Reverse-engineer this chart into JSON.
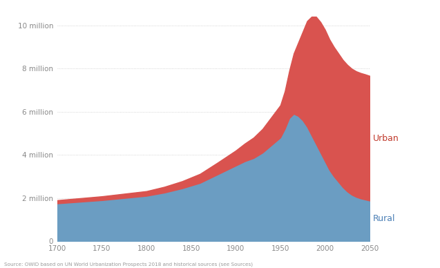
{
  "years": [
    1700,
    1750,
    1800,
    1820,
    1840,
    1860,
    1880,
    1900,
    1910,
    1920,
    1930,
    1940,
    1950,
    1955,
    1960,
    1965,
    1970,
    1975,
    1980,
    1985,
    1990,
    1995,
    2000,
    2005,
    2010,
    2015,
    2020,
    2025,
    2030,
    2035,
    2040,
    2045,
    2050
  ],
  "rural": [
    1750000,
    1900000,
    2100000,
    2250000,
    2450000,
    2700000,
    3100000,
    3500000,
    3700000,
    3850000,
    4100000,
    4450000,
    4800000,
    5200000,
    5700000,
    5900000,
    5800000,
    5600000,
    5300000,
    4900000,
    4500000,
    4100000,
    3700000,
    3300000,
    3000000,
    2750000,
    2500000,
    2300000,
    2150000,
    2050000,
    1980000,
    1930000,
    1880000
  ],
  "urban": [
    150000,
    180000,
    220000,
    270000,
    330000,
    420000,
    550000,
    700000,
    820000,
    950000,
    1100000,
    1300000,
    1500000,
    1750000,
    2200000,
    2800000,
    3400000,
    4100000,
    4900000,
    5500000,
    5900000,
    6050000,
    6100000,
    6050000,
    6000000,
    5950000,
    5900000,
    5870000,
    5840000,
    5820000,
    5810000,
    5800000,
    5780000
  ],
  "rural_color": "#6b9dc2",
  "urban_color": "#d9534f",
  "background_color": "#ffffff",
  "grid_color": "#c8c8c8",
  "ylabel_values": [
    0,
    2000000,
    4000000,
    6000000,
    8000000,
    10000000
  ],
  "ylabel_texts": [
    "0",
    "2 million",
    "4 million",
    "6 million",
    "8 million",
    "10 million"
  ],
  "xlim": [
    1700,
    2050
  ],
  "ylim": [
    0,
    10800000
  ],
  "xticks": [
    1700,
    1750,
    1800,
    1850,
    1900,
    1950,
    2000,
    2050
  ],
  "source_text": "Source: OWID based on UN World Urbanization Prospects 2018 and historical sources (see Sources)",
  "urban_label": "Urban",
  "rural_label": "Rural",
  "urban_label_color": "#c0392b",
  "rural_label_color": "#4a7fb5",
  "figsize": [
    6.37,
    3.88
  ],
  "dpi": 100
}
